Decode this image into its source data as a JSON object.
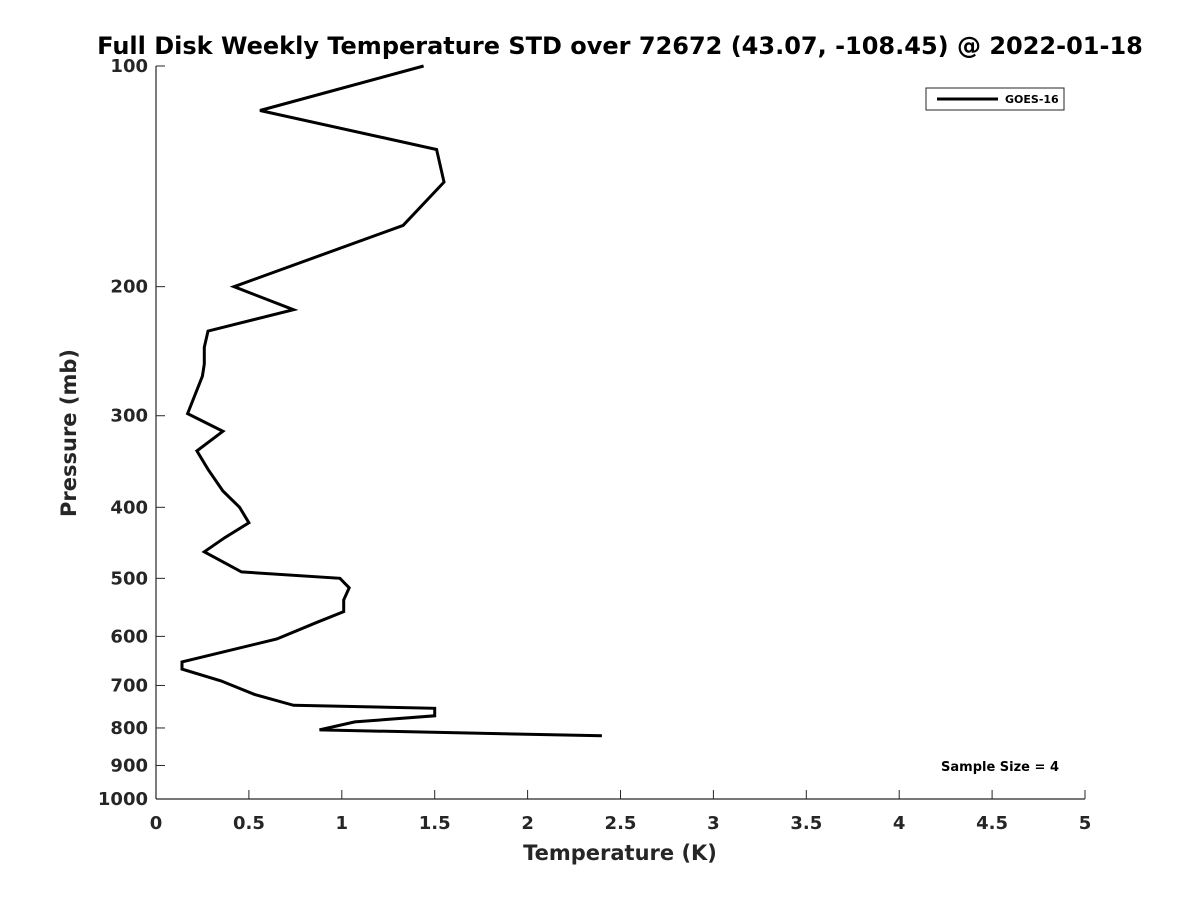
{
  "chart_data": {
    "type": "line",
    "title": "Full Disk Weekly Temperature STD over 72672 (43.07, -108.45) @ 2022-01-18",
    "xlabel": "Temperature (K)",
    "ylabel": "Pressure (mb)",
    "xlim": [
      0,
      5
    ],
    "ylim": [
      100,
      1000
    ],
    "y_scale": "log",
    "y_reversed": true,
    "x_ticks": [
      0,
      0.5,
      1,
      1.5,
      2,
      2.5,
      3,
      3.5,
      4,
      4.5,
      5
    ],
    "x_tick_labels": [
      "0",
      "0.5",
      "1",
      "1.5",
      "2",
      "2.5",
      "3",
      "3.5",
      "4",
      "4.5",
      "5"
    ],
    "y_ticks": [
      100,
      200,
      300,
      400,
      500,
      600,
      700,
      800,
      900,
      1000
    ],
    "y_tick_labels": [
      "100",
      "200",
      "300",
      "400",
      "500",
      "600",
      "700",
      "800",
      "900",
      "1000"
    ],
    "grid": false,
    "legend_position": "top-right",
    "series": [
      {
        "name": "GOES-16",
        "color": "#000000",
        "x": [
          1.44,
          0.56,
          1.51,
          1.55,
          1.33,
          0.42,
          0.74,
          0.28,
          0.26,
          0.26,
          0.25,
          0.17,
          0.36,
          0.22,
          0.28,
          0.36,
          0.45,
          0.5,
          0.37,
          0.26,
          0.46,
          0.99,
          1.04,
          1.01,
          1.01,
          0.86,
          0.65,
          0.14,
          0.14,
          0.35,
          0.53,
          0.74,
          1.5,
          1.5,
          1.07,
          0.88,
          2.4
        ],
        "y": [
          100,
          115,
          130,
          144,
          165,
          200,
          215,
          230,
          242,
          255,
          265,
          298,
          315,
          335,
          355,
          380,
          400,
          420,
          440,
          460,
          490,
          500,
          515,
          535,
          555,
          575,
          605,
          650,
          665,
          690,
          720,
          745,
          752,
          770,
          785,
          805,
          820
        ]
      }
    ],
    "annotations": [
      "Sample Size = 4"
    ]
  }
}
